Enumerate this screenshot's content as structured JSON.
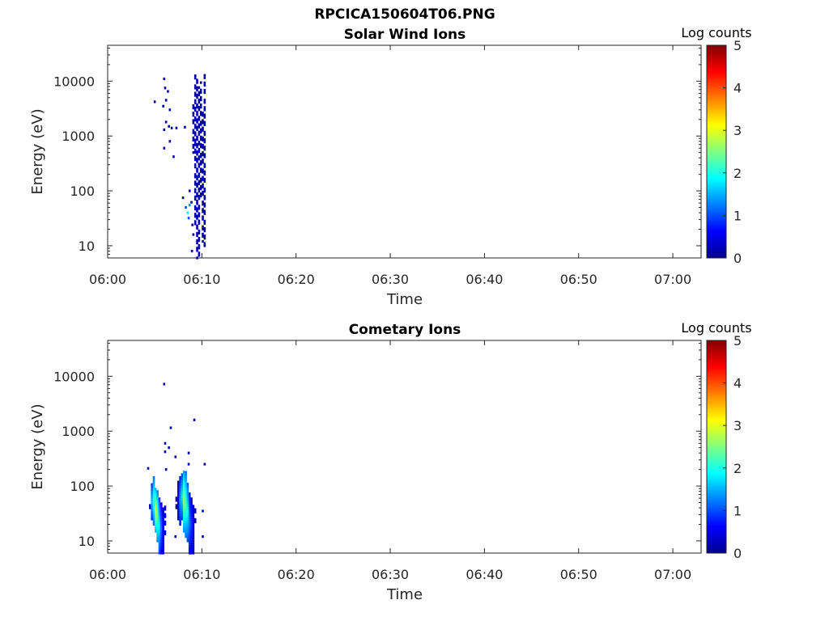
{
  "figure_title": "RPCICA150604T06.PNG",
  "chart_data": [
    {
      "type": "heatmap",
      "title": "Solar Wind Ions",
      "xlabel": "Time",
      "ylabel": "Energy (eV)",
      "y_scale": "log",
      "ylim": [
        6,
        45000
      ],
      "xlim_minutes": [
        0,
        63
      ],
      "x_ticks": [
        "06:00",
        "06:10",
        "06:20",
        "06:30",
        "06:40",
        "06:50",
        "07:00"
      ],
      "y_ticks": [
        {
          "value": 10,
          "label": "10"
        },
        {
          "value": 100,
          "label": "100"
        },
        {
          "value": 1000,
          "label": "1000"
        },
        {
          "value": 10000,
          "label": "10000"
        }
      ],
      "colorbar": {
        "title": "Log counts",
        "range": [
          0,
          5
        ],
        "ticks": [
          "0",
          "1",
          "2",
          "3",
          "4",
          "5"
        ]
      },
      "points": [
        [
          5.0,
          4200,
          0.2
        ],
        [
          6.0,
          11000,
          0.2
        ],
        [
          6.1,
          7500,
          0.2
        ],
        [
          6.4,
          6500,
          0.2
        ],
        [
          6.2,
          4500,
          0.2
        ],
        [
          5.9,
          3500,
          0.2
        ],
        [
          6.6,
          3000,
          0.2
        ],
        [
          6.2,
          1800,
          0.2
        ],
        [
          6.5,
          1500,
          0.2
        ],
        [
          6.8,
          1400,
          0.2
        ],
        [
          7.3,
          1400,
          0.2
        ],
        [
          6.0,
          1300,
          0.2
        ],
        [
          6.6,
          800,
          0.2
        ],
        [
          6.0,
          600,
          0.2
        ],
        [
          7.0,
          420,
          0.2
        ],
        [
          8.2,
          1450,
          0.2
        ],
        [
          8.0,
          75,
          0.2
        ],
        [
          8.3,
          50,
          1.0
        ],
        [
          8.5,
          40,
          1.8
        ],
        [
          8.7,
          55,
          1.3
        ],
        [
          8.6,
          32,
          1.0
        ],
        [
          8.9,
          62,
          0.4
        ],
        [
          9.0,
          24,
          0.2
        ],
        [
          9.1,
          16,
          0.2
        ],
        [
          8.95,
          8,
          0.2
        ],
        [
          8.7,
          100,
          0.2
        ]
      ],
      "strips": [
        {
          "t": 9.1,
          "from": 500,
          "to": 4000,
          "level": 0.2
        },
        {
          "t": 9.3,
          "from": 25,
          "to": 15000,
          "level": 0.2
        },
        {
          "t": 9.5,
          "from": 6,
          "to": 12000,
          "level": 0.2
        },
        {
          "t": 9.7,
          "from": 6,
          "to": 8000,
          "level": 0.2
        },
        {
          "t": 9.9,
          "from": 80,
          "to": 10000,
          "level": 0.2
        },
        {
          "t": 10.1,
          "from": 12,
          "to": 3000,
          "level": 0.2
        },
        {
          "t": 10.3,
          "from": 10,
          "to": 13000,
          "level": 0.2
        }
      ]
    },
    {
      "type": "heatmap",
      "title": "Cometary Ions",
      "xlabel": "Time",
      "ylabel": "Energy (eV)",
      "y_scale": "log",
      "ylim": [
        6,
        45000
      ],
      "xlim_minutes": [
        0,
        63
      ],
      "x_ticks": [
        "06:00",
        "06:10",
        "06:20",
        "06:30",
        "06:40",
        "06:50",
        "07:00"
      ],
      "y_ticks": [
        {
          "value": 10,
          "label": "10"
        },
        {
          "value": 100,
          "label": "100"
        },
        {
          "value": 1000,
          "label": "1000"
        },
        {
          "value": 10000,
          "label": "10000"
        }
      ],
      "colorbar": {
        "title": "Log counts",
        "range": [
          0,
          5
        ],
        "ticks": [
          "0",
          "1",
          "2",
          "3",
          "4",
          "5"
        ]
      },
      "points": [
        [
          6.0,
          7200,
          0.2
        ],
        [
          9.2,
          1600,
          0.2
        ],
        [
          6.7,
          1150,
          0.2
        ],
        [
          6.1,
          600,
          0.2
        ],
        [
          6.5,
          500,
          0.2
        ],
        [
          6.1,
          420,
          0.2
        ],
        [
          7.2,
          340,
          0.2
        ],
        [
          8.6,
          400,
          0.2
        ],
        [
          10.3,
          250,
          0.2
        ],
        [
          4.3,
          210,
          0.2
        ],
        [
          6.2,
          200,
          0.2
        ],
        [
          8.6,
          250,
          0.2
        ],
        [
          10.1,
          12,
          0.2
        ],
        [
          10.1,
          35,
          0.2
        ],
        [
          7.2,
          12,
          0.2
        ]
      ],
      "strips": [
        {
          "t": 4.5,
          "from": 40,
          "to": 60,
          "level": 0.4
        },
        {
          "t": 4.7,
          "from": 25,
          "to": 110,
          "level": 1.6
        },
        {
          "t": 4.9,
          "from": 20,
          "to": 150,
          "level": 2.2
        },
        {
          "t": 5.1,
          "from": 15,
          "to": 90,
          "level": 2.9
        },
        {
          "t": 5.3,
          "from": 10,
          "to": 80,
          "level": 2.5
        },
        {
          "t": 5.5,
          "from": 6,
          "to": 60,
          "level": 1.8
        },
        {
          "t": 5.7,
          "from": 6,
          "to": 50,
          "level": 1.2
        },
        {
          "t": 5.9,
          "from": 6,
          "to": 40,
          "level": 0.6
        },
        {
          "t": 6.1,
          "from": 12,
          "to": 50,
          "level": 0.3
        },
        {
          "t": 7.3,
          "from": 40,
          "to": 70,
          "level": 0.3
        },
        {
          "t": 7.5,
          "from": 25,
          "to": 120,
          "level": 0.5
        },
        {
          "t": 7.7,
          "from": 20,
          "to": 150,
          "level": 1.4
        },
        {
          "t": 7.9,
          "from": 25,
          "to": 170,
          "level": 1.8
        },
        {
          "t": 8.1,
          "from": 15,
          "to": 200,
          "level": 2.6
        },
        {
          "t": 8.3,
          "from": 12,
          "to": 180,
          "level": 2.3
        },
        {
          "t": 8.5,
          "from": 10,
          "to": 120,
          "level": 1.9
        },
        {
          "t": 8.7,
          "from": 6,
          "to": 80,
          "level": 1.2
        },
        {
          "t": 8.9,
          "from": 6,
          "to": 60,
          "level": 0.9
        },
        {
          "t": 9.1,
          "from": 6,
          "to": 45,
          "level": 0.5
        },
        {
          "t": 9.3,
          "from": 20,
          "to": 40,
          "level": 0.3
        }
      ]
    }
  ]
}
